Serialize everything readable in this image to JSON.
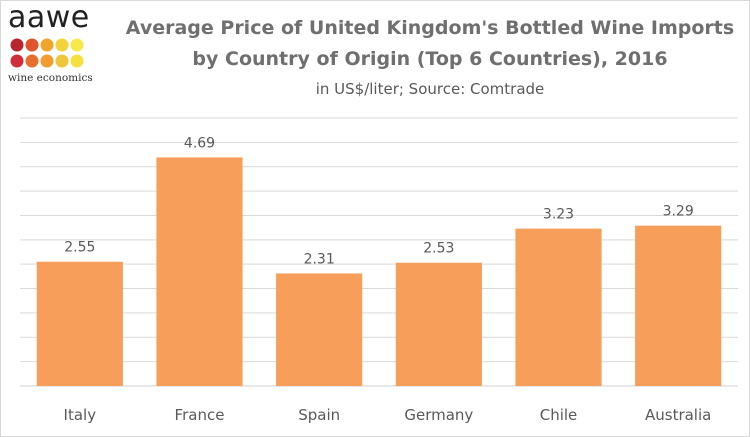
{
  "logo": {
    "word": "aawe",
    "tagline": "wine economics",
    "dot_colors": [
      "#b8252e",
      "#e2542b",
      "#f0a52b",
      "#f3d33c",
      "#f7e84b",
      "#cf2f3a",
      "#e66f2e",
      "#f29b2f",
      "#efc53a",
      "#f6e03f"
    ]
  },
  "chart_data": {
    "type": "bar",
    "title_line1": "Average Price of United Kingdom's Bottled Wine Imports",
    "title_line2": "by Country of Origin (Top 6 Countries), 2016",
    "subtitle": "in US$/liter; Source: Comtrade",
    "categories": [
      "Italy",
      "France",
      "Spain",
      "Germany",
      "Chile",
      "Australia"
    ],
    "values": [
      2.55,
      4.69,
      2.31,
      2.53,
      3.23,
      3.29
    ],
    "value_labels": [
      "2.55",
      "4.69",
      "2.31",
      "2.53",
      "3.23",
      "3.29"
    ],
    "ylim": [
      0,
      5.5
    ],
    "gridlines": true,
    "grid_step": 0.5,
    "bar_color": "#f79e5b",
    "grid_color": "#d9d9d9",
    "label_color": "#595959"
  }
}
